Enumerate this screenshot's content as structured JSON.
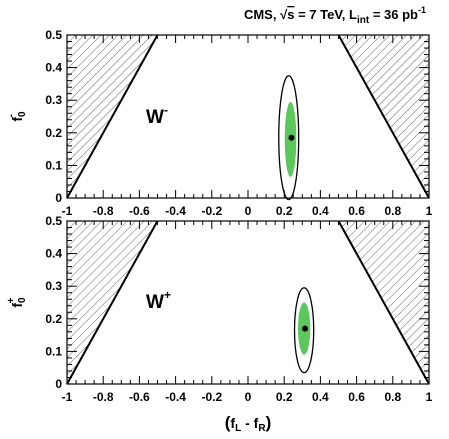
{
  "title": {
    "prefix": "CMS, ",
    "sqrt_symbol": "√",
    "sqrt_arg": "s",
    "energy": " = 7 TeV, L",
    "lumi_sub": "int",
    "lumi_value": " = 36 pb",
    "lumi_sup": "-1"
  },
  "xlabel": {
    "open": "(",
    "fL": "f",
    "fL_sub": "L",
    "minus": " - ",
    "fR": "f",
    "fR_sub": "R",
    "close": ")"
  },
  "chart_data": [
    {
      "type": "scatter",
      "panel": "W-",
      "panel_label": "W",
      "panel_label_sup": "-",
      "ylabel": "f",
      "ylabel_sub": "0",
      "ylabel_sup": "-",
      "xlim": [
        -1,
        1
      ],
      "ylim": [
        0,
        0.5
      ],
      "x_ticks": [
        "-1",
        "-0.8",
        "-0.6",
        "-0.4",
        "-0.2",
        "0",
        "0.2",
        "0.4",
        "0.6",
        "0.8",
        "1"
      ],
      "y_ticks": [
        "0",
        "0.1",
        "0.2",
        "0.3",
        "0.4",
        "0.5"
      ],
      "best_fit": {
        "x": 0.24,
        "y": 0.185
      },
      "contour_inner": {
        "center_x": 0.235,
        "center_y": 0.18,
        "half_width_x": 0.032,
        "half_height_y": 0.115,
        "color": "#5cc85c"
      },
      "contour_outer": {
        "center_x": 0.225,
        "center_y": 0.185,
        "half_width_x": 0.055,
        "half_height_y": 0.19
      },
      "excluded_left": [
        [
          -1,
          0
        ],
        [
          -0.5,
          0.5
        ],
        [
          -1,
          0.5
        ]
      ],
      "excluded_right": [
        [
          1,
          0
        ],
        [
          0.5,
          0.5
        ],
        [
          1,
          0.5
        ]
      ],
      "hatch": "diagonal"
    },
    {
      "type": "scatter",
      "panel": "W+",
      "panel_label": "W",
      "panel_label_sup": "+",
      "ylabel": "f",
      "ylabel_sub": "0",
      "ylabel_sup": "+",
      "xlim": [
        -1,
        1
      ],
      "ylim": [
        0,
        0.5
      ],
      "x_ticks": [
        "-1",
        "-0.8",
        "-0.6",
        "-0.4",
        "-0.2",
        "0",
        "0.2",
        "0.4",
        "0.6",
        "0.8",
        "1"
      ],
      "y_ticks": [
        "0",
        "0.1",
        "0.2",
        "0.3",
        "0.4",
        "0.5"
      ],
      "best_fit": {
        "x": 0.315,
        "y": 0.17
      },
      "contour_inner": {
        "center_x": 0.31,
        "center_y": 0.17,
        "half_width_x": 0.034,
        "half_height_y": 0.08,
        "color": "#5cc85c"
      },
      "contour_outer": {
        "center_x": 0.31,
        "center_y": 0.165,
        "half_width_x": 0.053,
        "half_height_y": 0.13
      },
      "excluded_left": [
        [
          -1,
          0
        ],
        [
          -0.5,
          0.5
        ],
        [
          -1,
          0.5
        ]
      ],
      "excluded_right": [
        [
          1,
          0
        ],
        [
          0.5,
          0.5
        ],
        [
          1,
          0.5
        ]
      ],
      "hatch": "diagonal"
    }
  ]
}
